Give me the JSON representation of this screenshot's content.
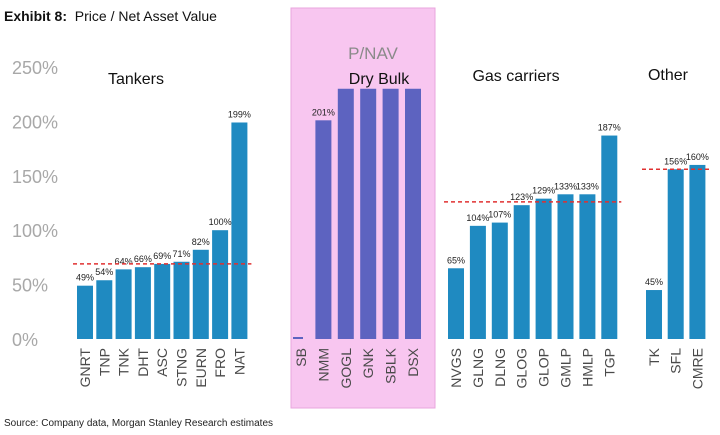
{
  "exhibit": {
    "label": "Exhibit 8:",
    "title": "Price / Net Asset Value"
  },
  "source": "Source: Company data, Morgan Stanley Research estimates",
  "chart_data": {
    "type": "bar",
    "title": "Price / Net Asset Value",
    "ylim": [
      0,
      250
    ],
    "yticks": [
      0,
      50,
      100,
      150,
      200,
      250
    ],
    "ytick_labels": [
      "0%",
      "50%",
      "100%",
      "150%",
      "200%",
      "250%"
    ],
    "grid": false,
    "colors": {
      "bar": "#1f8ac1",
      "bar_drybulk": "#5d63c0",
      "highlight": "#f8c6f0",
      "avg_line": "#e03030"
    },
    "groups": [
      {
        "name": "Tankers",
        "categories": [
          "GNRT",
          "TNP",
          "TNK",
          "DHT",
          "ASC",
          "STNG",
          "EURN",
          "FRO",
          "NAT"
        ],
        "values": [
          49,
          54,
          64,
          66,
          69,
          71,
          82,
          100,
          199
        ],
        "data_labels": [
          "49%",
          "54%",
          "64%",
          "66%",
          "69%",
          "71%",
          "82%",
          "100%",
          "199%"
        ],
        "average": 69
      },
      {
        "name": "Dry Bulk",
        "subtitle": "P/NAV",
        "highlighted": true,
        "categories": [
          "SB",
          "NMM",
          "GOGL",
          "GNK",
          "SBLK",
          "DSX"
        ],
        "values": [
          1,
          201,
          230,
          230,
          230,
          230
        ],
        "data_labels": [
          "",
          "201%",
          "",
          "",
          "",
          ""
        ],
        "average": null
      },
      {
        "name": "Gas carriers",
        "categories": [
          "NVGS",
          "GLNG",
          "DLNG",
          "GLOG",
          "GLOP",
          "GMLP",
          "HMLP",
          "TGP"
        ],
        "values": [
          65,
          104,
          107,
          123,
          129,
          133,
          133,
          187
        ],
        "data_labels": [
          "65%",
          "104%",
          "107%",
          "123%",
          "129%",
          "133%",
          "133%",
          "187%"
        ],
        "average": 126
      },
      {
        "name": "Other",
        "categories": [
          "TK",
          "SFL",
          "CMRE"
        ],
        "values": [
          45,
          156,
          160
        ],
        "data_labels": [
          "45%",
          "156%",
          "160%"
        ],
        "average": 156
      }
    ]
  }
}
